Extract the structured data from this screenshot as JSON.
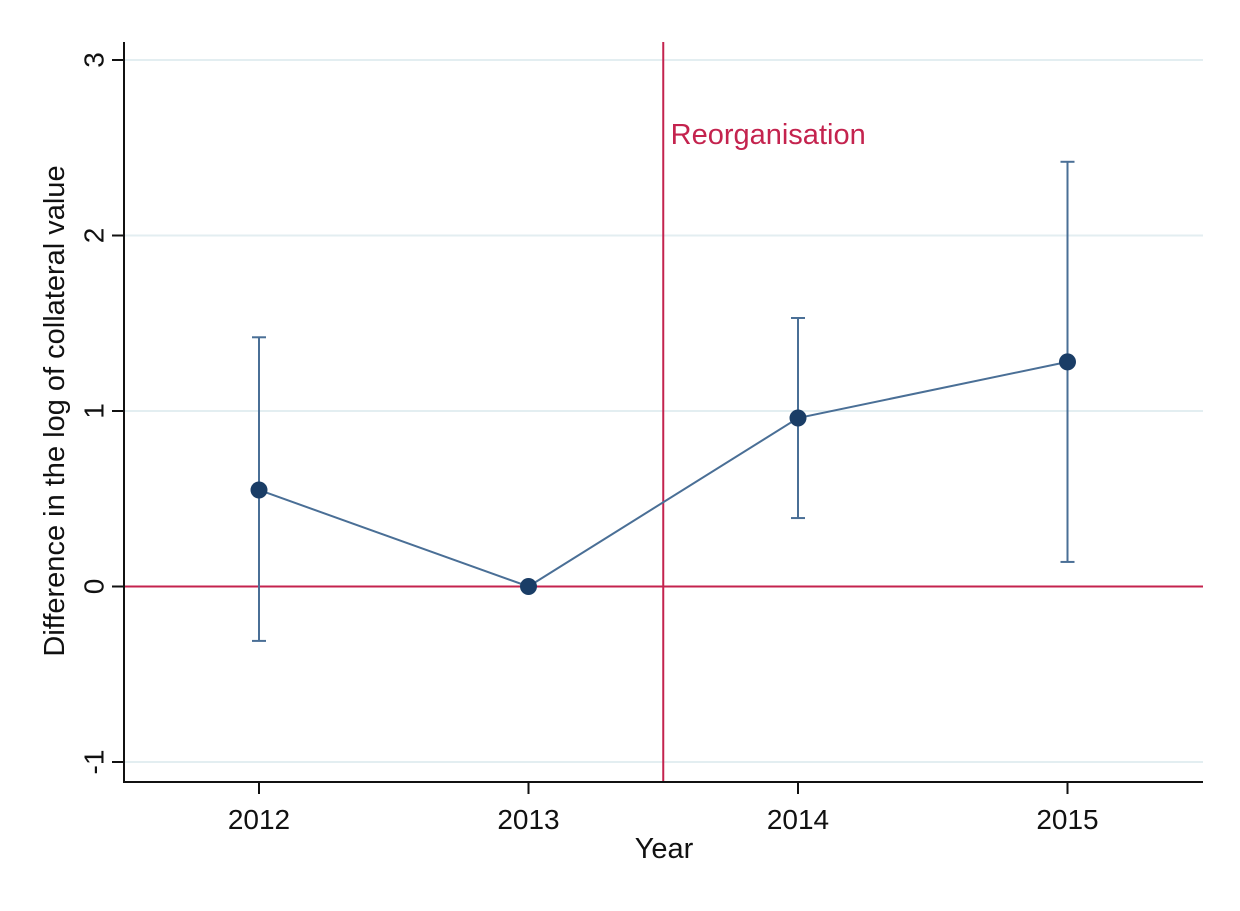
{
  "chart_data": {
    "type": "scatter",
    "title": "",
    "xlabel": "Year",
    "ylabel": "Difference in the log of collateral value",
    "x_ticks": [
      "2012",
      "2013",
      "2014",
      "2015"
    ],
    "y_ticks": [
      "-1",
      "0",
      "1",
      "2",
      "3"
    ],
    "xlim": [
      2011.5,
      2015.5
    ],
    "ylim": [
      -1.1,
      3.1
    ],
    "grid": true,
    "legend": "none",
    "series": [
      {
        "points": [
          {
            "x": 2012,
            "y": 0.55,
            "lower": -0.31,
            "upper": 1.42
          },
          {
            "x": 2013,
            "y": 0.0,
            "lower": 0.0,
            "upper": 0.0
          },
          {
            "x": 2014,
            "y": 0.96,
            "lower": 0.39,
            "upper": 1.53
          },
          {
            "x": 2015,
            "y": 1.28,
            "lower": 0.14,
            "upper": 2.42
          }
        ],
        "color": "#1a3d66",
        "line_color": "#4a6f96"
      }
    ],
    "reference_lines": {
      "horizontal_y": 0,
      "vertical_x": 2013.5,
      "color": "#c4234e"
    },
    "annotations": [
      {
        "text": "Reorganisation",
        "x": 2013.52,
        "y": 2.55,
        "color": "#c4234e"
      }
    ]
  }
}
